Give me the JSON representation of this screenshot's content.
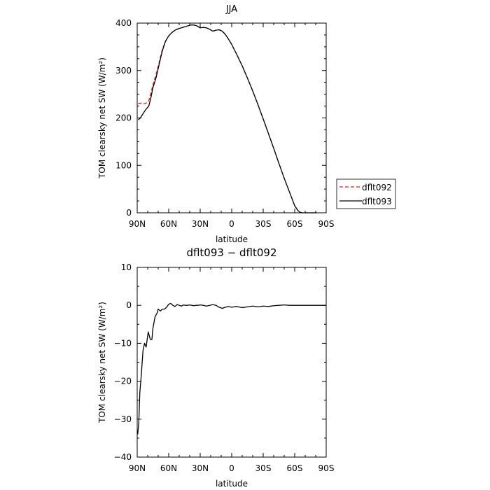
{
  "chart_data": [
    {
      "type": "line",
      "title": "JJA",
      "xlabel": "latitude",
      "ylabel": "TOM clearsky net SW (W/m²)",
      "xlim": [
        90,
        -90
      ],
      "ylim": [
        0,
        400
      ],
      "x_ticks": [
        90,
        60,
        30,
        0,
        -30,
        -60,
        -90
      ],
      "x_tick_labels": [
        "90N",
        "60N",
        "30N",
        "0",
        "30S",
        "60S",
        "90S"
      ],
      "y_ticks": [
        0,
        100,
        200,
        300,
        400
      ],
      "y_tick_labels": [
        "0",
        "100",
        "200",
        "300",
        "400"
      ],
      "legend_position": "right, outside plot",
      "series": [
        {
          "name": "dflt092",
          "color": "#d62020",
          "style": "dashed",
          "x": [
            89,
            87,
            85,
            83,
            81,
            79,
            77,
            75,
            72,
            69,
            66,
            63,
            60,
            57,
            54,
            51,
            48,
            45,
            42,
            39,
            36,
            33,
            30,
            27,
            24,
            21,
            18,
            15,
            12,
            9,
            6,
            3,
            0,
            -5,
            -10,
            -15,
            -20,
            -25,
            -30,
            -35,
            -40,
            -45,
            -50,
            -55,
            -60,
            -63,
            -65,
            -67,
            -69,
            -71,
            -73,
            -75,
            -77,
            -79,
            -81
          ],
          "y": [
            230,
            231,
            232,
            230,
            232,
            236,
            252,
            270,
            292,
            318,
            345,
            362,
            373,
            380,
            385,
            388,
            390,
            392,
            394,
            396,
            396,
            394,
            390,
            391,
            390,
            387,
            383,
            385,
            386,
            383,
            376,
            366,
            355,
            333,
            310,
            284,
            257,
            228,
            198,
            167,
            136,
            104,
            73,
            44,
            15,
            5,
            1,
            0,
            0,
            0,
            0,
            0,
            0,
            0,
            0
          ]
        },
        {
          "name": "dflt093",
          "color": "#000000",
          "style": "solid",
          "x": [
            89,
            87,
            85,
            83,
            81,
            79,
            77,
            75,
            72,
            69,
            66,
            63,
            60,
            57,
            54,
            51,
            48,
            45,
            42,
            39,
            36,
            33,
            30,
            27,
            24,
            21,
            18,
            15,
            12,
            9,
            6,
            3,
            0,
            -5,
            -10,
            -15,
            -20,
            -25,
            -30,
            -35,
            -40,
            -45,
            -50,
            -55,
            -60,
            -63,
            -65,
            -67,
            -69,
            -71,
            -73,
            -75,
            -77,
            -79,
            -81
          ],
          "y": [
            196,
            200,
            207,
            214,
            220,
            225,
            242,
            264,
            285,
            314,
            342,
            362,
            373,
            380,
            385,
            388,
            390,
            392,
            394,
            396,
            396,
            394,
            390,
            391,
            390,
            387,
            383,
            385,
            386,
            383,
            376,
            366,
            355,
            333,
            310,
            284,
            257,
            228,
            198,
            167,
            136,
            104,
            73,
            44,
            15,
            5,
            1,
            0,
            0,
            0,
            0,
            0,
            0,
            0,
            0
          ]
        }
      ]
    },
    {
      "type": "line",
      "title": "dflt093 − dflt092",
      "xlabel": "latitude",
      "ylabel": "TOM clearsky net SW (W/m²)",
      "xlim": [
        90,
        -90
      ],
      "ylim": [
        -40,
        10
      ],
      "x_ticks": [
        90,
        60,
        30,
        0,
        -30,
        -60,
        -90
      ],
      "x_tick_labels": [
        "90N",
        "60N",
        "30N",
        "0",
        "30S",
        "60S",
        "90S"
      ],
      "y_ticks": [
        -40,
        -30,
        -20,
        -10,
        0,
        10
      ],
      "y_tick_labels": [
        "−40",
        "−30",
        "−20",
        "−10",
        "0",
        "10"
      ],
      "series": [
        {
          "color": "#000000",
          "style": "solid",
          "x": [
            89.5,
            88.5,
            87.5,
            86,
            84.5,
            83,
            81.5,
            80.5,
            79.5,
            78.5,
            77.5,
            76,
            75,
            73,
            71,
            70,
            68,
            66,
            64,
            62,
            60,
            58,
            56,
            54,
            52,
            50,
            48,
            46,
            44,
            42,
            40,
            38,
            36,
            34,
            32,
            30,
            27,
            24,
            21,
            18,
            15,
            12,
            9,
            6,
            3,
            0,
            -5,
            -10,
            -15,
            -20,
            -25,
            -30,
            -35,
            -40,
            -45,
            -50,
            -55,
            -60,
            -70,
            -80,
            -90
          ],
          "y": [
            -34,
            -31,
            -23,
            -18,
            -12,
            -10,
            -11,
            -9,
            -7,
            -8,
            -9,
            -9,
            -6,
            -3,
            -2,
            -1,
            -1.5,
            -1,
            -1,
            -0.5,
            0.3,
            0.5,
            0,
            -0.3,
            0.2,
            0,
            -0.2,
            0.1,
            0,
            0,
            0.1,
            0,
            -0.1,
            0,
            0,
            0.1,
            0,
            -0.2,
            0,
            0.2,
            0,
            -0.5,
            -0.8,
            -0.5,
            -0.3,
            -0.5,
            -0.3,
            -0.6,
            -0.4,
            -0.2,
            -0.4,
            -0.2,
            -0.3,
            -0.1,
            0,
            0.1,
            0,
            0,
            0,
            0,
            0
          ]
        }
      ]
    }
  ]
}
